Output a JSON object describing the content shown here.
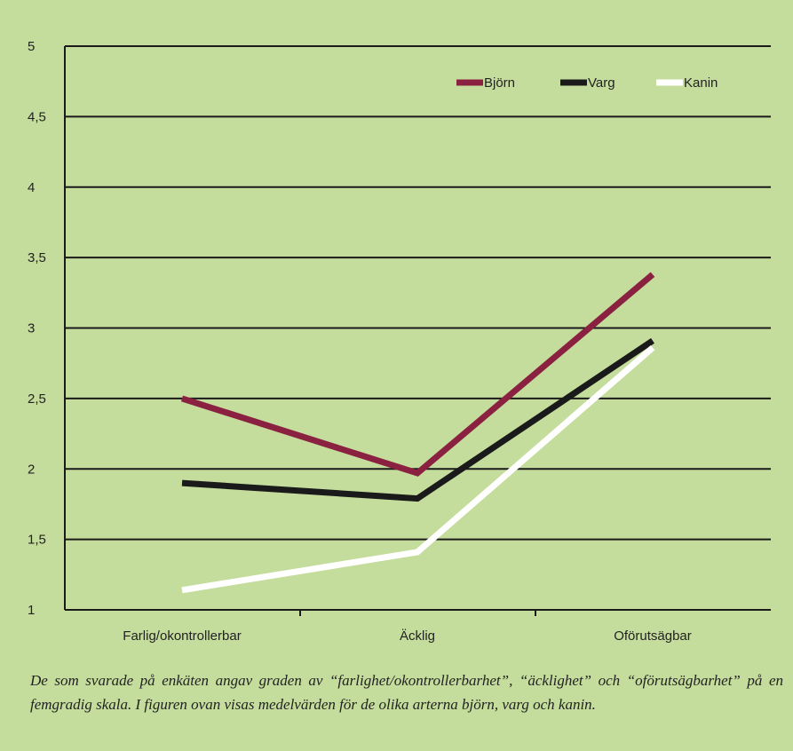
{
  "chart_data": {
    "type": "line",
    "categories": [
      "Farlig/okontrollerbar",
      "Äcklig",
      "Oförutsägbar"
    ],
    "y_ticks": [
      "1",
      "1,5",
      "2",
      "2,5",
      "3",
      "3,5",
      "4",
      "4,5",
      "5"
    ],
    "ylim": [
      1,
      5
    ],
    "grid": true,
    "legend_position": "top-right",
    "series": [
      {
        "name": "Björn",
        "color": "#8b2140",
        "values": [
          2.5,
          1.97,
          3.38
        ]
      },
      {
        "name": "Varg",
        "color": "#1a1a1a",
        "values": [
          1.9,
          1.79,
          2.91
        ]
      },
      {
        "name": "Kanin",
        "color": "#ffffff",
        "values": [
          1.14,
          1.41,
          2.86
        ]
      }
    ]
  },
  "caption": "De som svarade på enkäten angav graden av “farlighet/okontrollerbarhet”, “äcklighet” och “oförutsägbarhet” på en femgradig skala. I figuren ovan visas medelvärden för de olika arterna björn, varg och kanin."
}
